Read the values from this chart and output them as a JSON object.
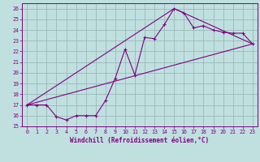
{
  "xlabel": "Windchill (Refroidissement éolien,°C)",
  "bg_color": "#c0e0e0",
  "grid_color": "#9ababa",
  "line_color": "#800080",
  "xlim": [
    -0.5,
    23.5
  ],
  "ylim": [
    15,
    26.5
  ],
  "xticks": [
    0,
    1,
    2,
    3,
    4,
    5,
    6,
    7,
    8,
    9,
    10,
    11,
    12,
    13,
    14,
    15,
    16,
    17,
    18,
    19,
    20,
    21,
    22,
    23
  ],
  "yticks": [
    15,
    16,
    17,
    18,
    19,
    20,
    21,
    22,
    23,
    24,
    25,
    26
  ],
  "line1_x": [
    0,
    1,
    2,
    3,
    4,
    5,
    6,
    7,
    8,
    9,
    10,
    11,
    12,
    13,
    14,
    15,
    16,
    17,
    18,
    19,
    20,
    21,
    22,
    23
  ],
  "line1_y": [
    17.0,
    17.0,
    17.0,
    15.9,
    15.6,
    16.0,
    16.0,
    16.0,
    17.4,
    19.5,
    22.2,
    19.8,
    23.3,
    23.2,
    24.5,
    26.0,
    25.6,
    24.2,
    24.4,
    24.0,
    23.8,
    23.7,
    23.7,
    22.7
  ],
  "line2_x": [
    0,
    23
  ],
  "line2_y": [
    17.0,
    22.7
  ],
  "line3_x": [
    0,
    15,
    23
  ],
  "line3_y": [
    17.0,
    26.0,
    22.7
  ],
  "tick_fontsize": 4.8,
  "xlabel_fontsize": 5.5
}
